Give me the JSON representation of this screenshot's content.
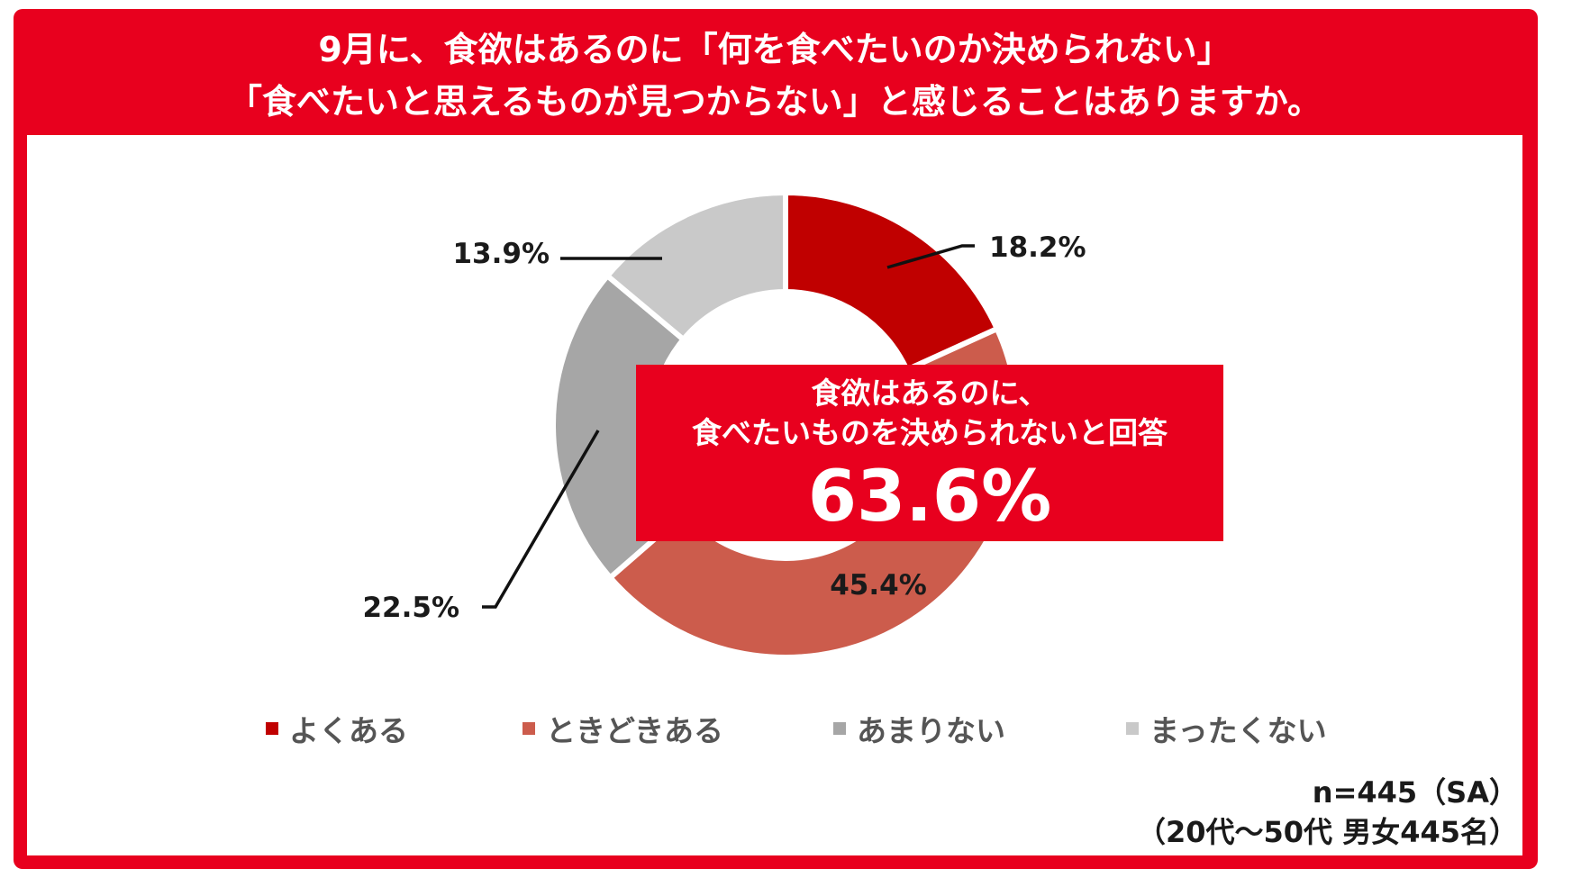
{
  "header": {
    "title_line1": "9月に、食欲はあるのに「何を食べたいのか決められない」",
    "title_line2": "「食べたいと思えるものが見つからない」と感じることはありますか。"
  },
  "chart_data": {
    "type": "pie",
    "donut": true,
    "labels": [
      "よくある",
      "ときどきある",
      "あまりない",
      "まったくない"
    ],
    "values": [
      18.2,
      45.4,
      22.5,
      13.9
    ],
    "value_labels": [
      "18.2%",
      "45.4%",
      "22.5%",
      "13.9%"
    ],
    "colors": [
      "#c00000",
      "#cc5c4c",
      "#a6a6a6",
      "#c9c9c9"
    ],
    "legend_position": "bottom"
  },
  "callout": {
    "line1": "食欲はあるのに、",
    "line2": "食べたいものを決められないと回答",
    "value": "63.6%"
  },
  "note": {
    "line1": "n=445（SA）",
    "line2": "（20代～50代 男女445名）"
  }
}
